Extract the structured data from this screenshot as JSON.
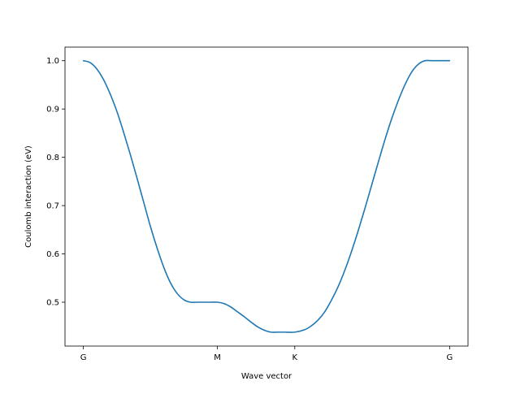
{
  "chart_data": {
    "type": "line",
    "title": "",
    "xlabel": "Wave vector",
    "ylabel": "Coulomb interaction (eV)",
    "x_ticks": [
      {
        "label": "G",
        "x": 0.0
      },
      {
        "label": "M",
        "x": 1.0
      },
      {
        "label": "K",
        "x": 1.577
      },
      {
        "label": "G",
        "x": 2.732
      }
    ],
    "y_ticks": [
      0.5,
      0.6,
      0.7,
      0.8,
      0.9,
      1.0
    ],
    "y_tick_labels": [
      "0.5",
      "0.6",
      "0.7",
      "0.8",
      "0.9",
      "1.0"
    ],
    "xlim": [
      -0.137,
      2.869
    ],
    "ylim": [
      0.4092,
      1.0281
    ],
    "grid": false,
    "series": [
      {
        "color": "#1f77b4",
        "x": [
          0.0,
          0.05,
          0.1,
          0.15,
          0.2,
          0.25,
          0.3,
          0.35,
          0.4,
          0.45,
          0.5,
          0.55,
          0.6,
          0.65,
          0.7,
          0.75,
          0.8,
          0.85,
          0.9,
          0.95,
          1.0,
          1.05,
          1.1,
          1.15,
          1.2,
          1.25,
          1.3,
          1.35,
          1.4,
          1.45,
          1.5,
          1.577,
          1.65,
          1.7,
          1.75,
          1.8,
          1.85,
          1.9,
          1.95,
          2.0,
          2.05,
          2.1,
          2.15,
          2.2,
          2.25,
          2.3,
          2.35,
          2.4,
          2.45,
          2.5,
          2.55,
          2.6,
          2.65,
          2.7,
          2.732
        ],
        "y": [
          1.0,
          0.996,
          0.983,
          0.961,
          0.931,
          0.895,
          0.852,
          0.806,
          0.757,
          0.707,
          0.657,
          0.612,
          0.572,
          0.54,
          0.518,
          0.505,
          0.5,
          0.5,
          0.5,
          0.5,
          0.5,
          0.497,
          0.49,
          0.48,
          0.47,
          0.459,
          0.449,
          0.442,
          0.438,
          0.438,
          0.438,
          0.438,
          0.443,
          0.451,
          0.463,
          0.48,
          0.504,
          0.532,
          0.566,
          0.605,
          0.648,
          0.694,
          0.742,
          0.79,
          0.837,
          0.88,
          0.918,
          0.951,
          0.977,
          0.993,
          1.0,
          1.0,
          1.0,
          1.0,
          1.0
        ]
      }
    ]
  }
}
